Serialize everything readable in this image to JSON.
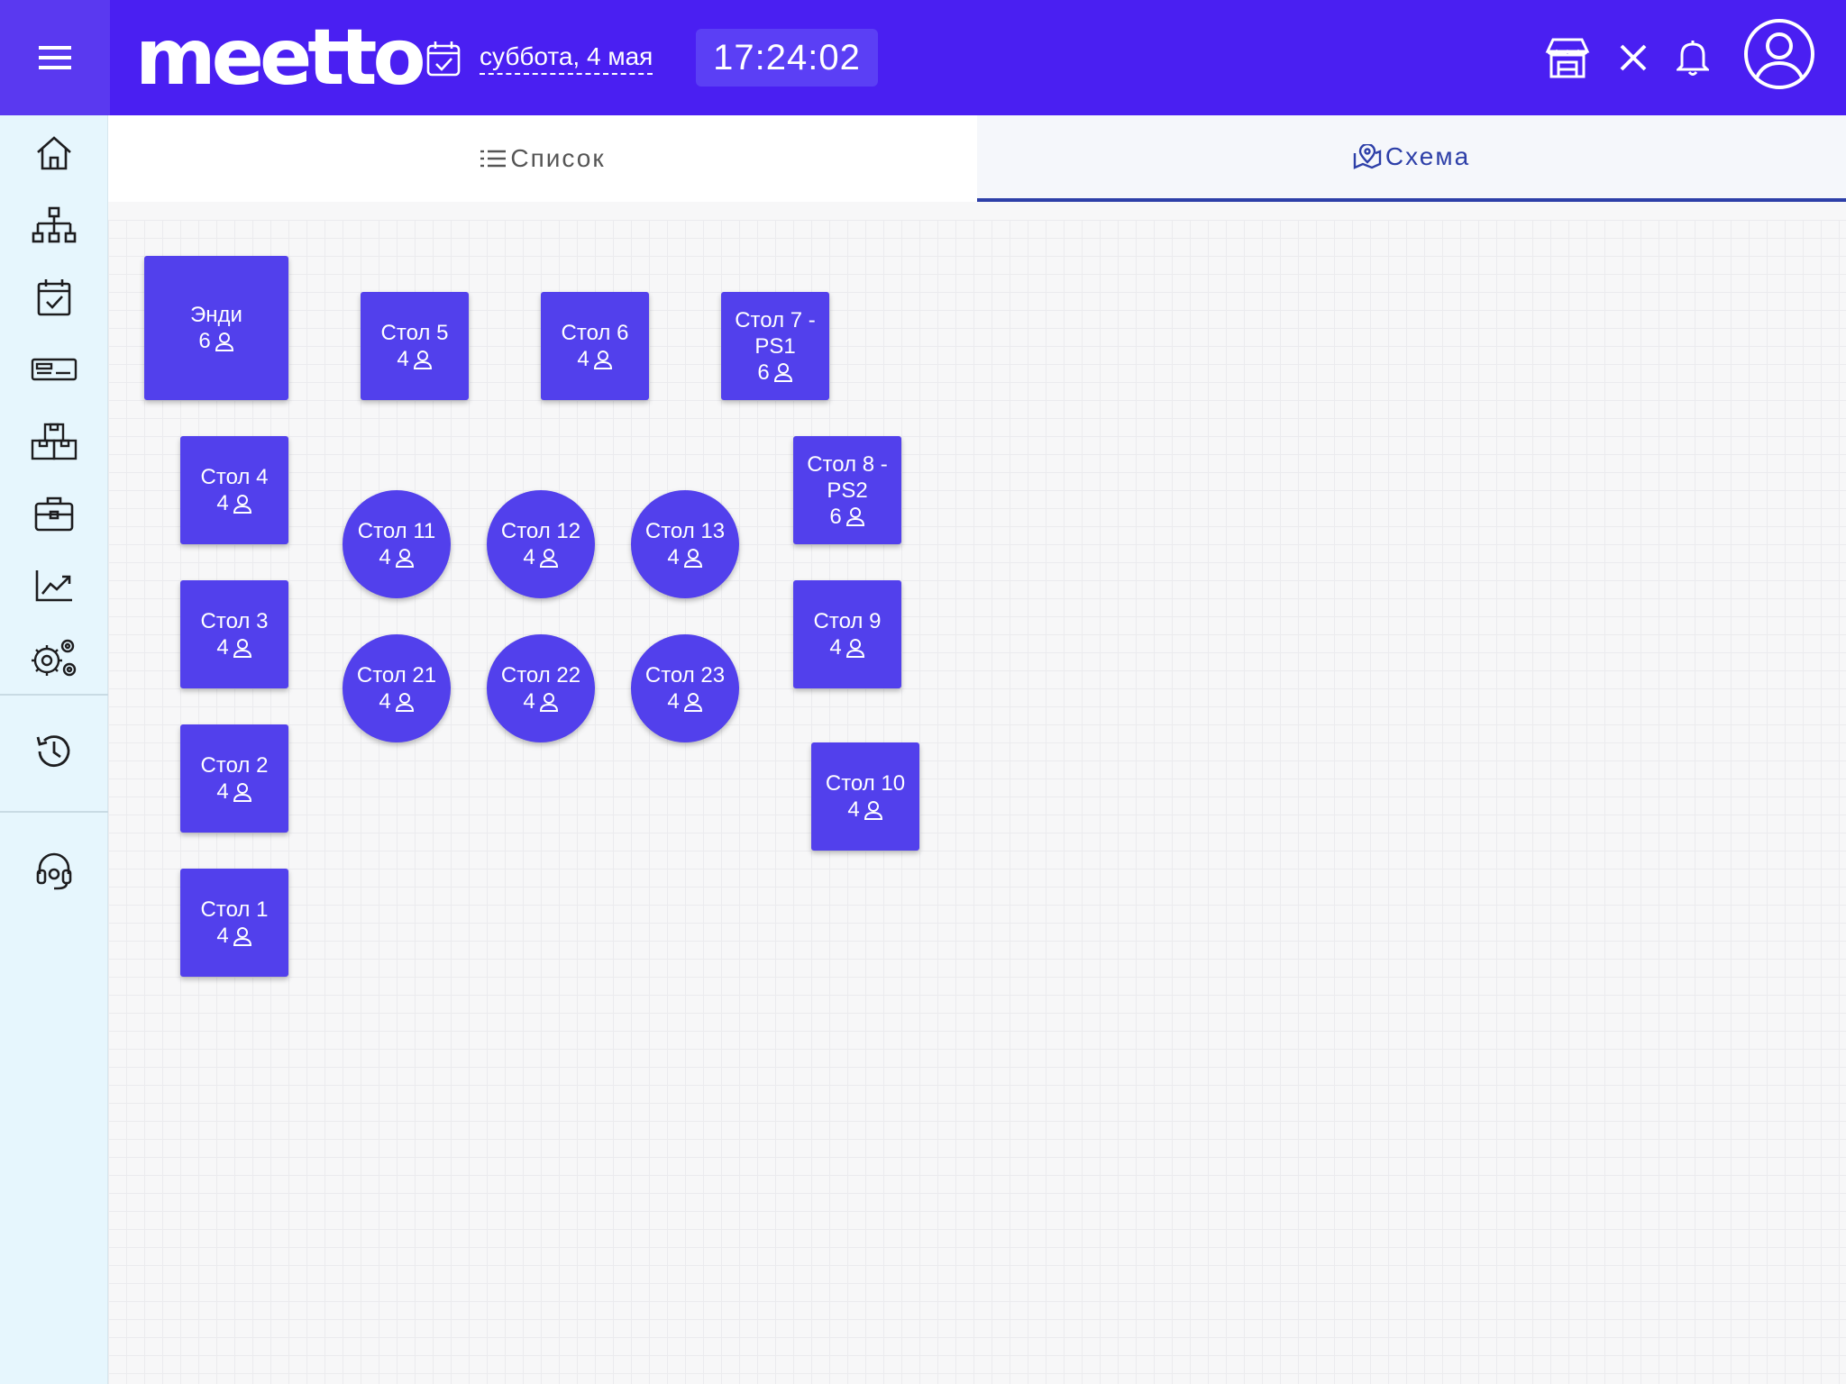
{
  "header": {
    "logo_text": "meetto",
    "date": "суббота, 4 мая",
    "time": "17:24:02",
    "accent": "#4a1ff2"
  },
  "sidebar": {
    "items": [
      {
        "name": "home",
        "icon": "home-icon"
      },
      {
        "name": "structure",
        "icon": "hierarchy-icon"
      },
      {
        "name": "calendar",
        "icon": "calendar-check-icon"
      },
      {
        "name": "cashbox",
        "icon": "keyboard-icon"
      },
      {
        "name": "warehouse",
        "icon": "boxes-icon"
      },
      {
        "name": "briefcase",
        "icon": "briefcase-icon"
      },
      {
        "name": "analytics",
        "icon": "chart-trend-icon"
      },
      {
        "name": "settings",
        "icon": "gears-icon"
      },
      {
        "name": "history",
        "icon": "history-icon"
      },
      {
        "name": "support",
        "icon": "headset-icon"
      }
    ]
  },
  "tabs": {
    "list": "Список",
    "scheme": "Схема",
    "active": "scheme"
  },
  "tables": [
    {
      "id": "andy",
      "name": "Энди",
      "seats": "6",
      "shape": "square"
    },
    {
      "id": "t5",
      "name": "Стол 5",
      "seats": "4",
      "shape": "square"
    },
    {
      "id": "t6",
      "name": "Стол 6",
      "seats": "4",
      "shape": "square"
    },
    {
      "id": "t7",
      "name": "Стол 7 - PS1",
      "seats": "6",
      "shape": "square"
    },
    {
      "id": "t4",
      "name": "Стол 4",
      "seats": "4",
      "shape": "square"
    },
    {
      "id": "t8",
      "name": "Стол 8 - PS2",
      "seats": "6",
      "shape": "square"
    },
    {
      "id": "t11",
      "name": "Стол 11",
      "seats": "4",
      "shape": "round"
    },
    {
      "id": "t12",
      "name": "Стол 12",
      "seats": "4",
      "shape": "round"
    },
    {
      "id": "t13",
      "name": "Стол 13",
      "seats": "4",
      "shape": "round"
    },
    {
      "id": "t3",
      "name": "Стол 3",
      "seats": "4",
      "shape": "square"
    },
    {
      "id": "t9",
      "name": "Стол 9",
      "seats": "4",
      "shape": "square"
    },
    {
      "id": "t21",
      "name": "Стол 21",
      "seats": "4",
      "shape": "round"
    },
    {
      "id": "t22",
      "name": "Стол 22",
      "seats": "4",
      "shape": "round"
    },
    {
      "id": "t23",
      "name": "Стол 23",
      "seats": "4",
      "shape": "round"
    },
    {
      "id": "t2",
      "name": "Стол 2",
      "seats": "4",
      "shape": "square"
    },
    {
      "id": "t10",
      "name": "Стол 10",
      "seats": "4",
      "shape": "square"
    },
    {
      "id": "t1",
      "name": "Стол 1",
      "seats": "4",
      "shape": "square"
    }
  ]
}
